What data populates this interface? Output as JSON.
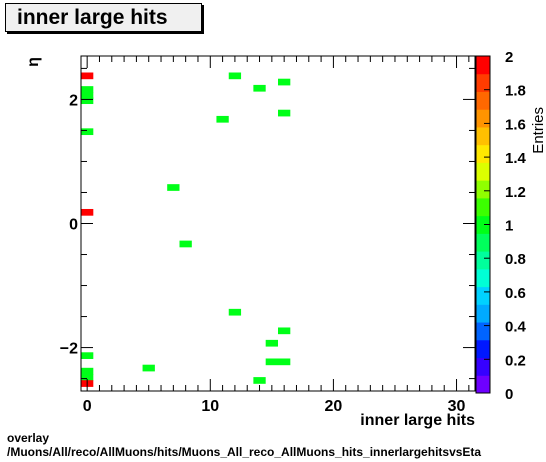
{
  "chart_data": {
    "type": "heatmap",
    "title": "inner large hits",
    "xlabel": "inner large hits",
    "ylabel": "η",
    "zlabel": "Entries",
    "xlim": [
      -0.5,
      31.5
    ],
    "ylim": [
      -2.7,
      2.7
    ],
    "zlim": [
      0,
      2
    ],
    "x_ticks": [
      0,
      10,
      20,
      30
    ],
    "y_ticks": [
      -2,
      0,
      2
    ],
    "z_ticks": [
      0,
      0.2,
      0.4,
      0.6,
      0.8,
      1,
      1.2,
      1.4,
      1.6,
      1.8,
      2
    ],
    "x_bin_width": 1,
    "y_bin_width": 0.108,
    "colormap": [
      "#6e00ff",
      "#3600ff",
      "#0018ff",
      "#0064ff",
      "#00aaff",
      "#00d2ff",
      "#00ffd6",
      "#00ff9c",
      "#00ff5c",
      "#00ff18",
      "#3cff00",
      "#90ff00",
      "#dcff00",
      "#ffe800",
      "#ffc000",
      "#ff9400",
      "#ff6800",
      "#ff3c00",
      "#ff0000"
    ],
    "points": [
      {
        "x": 0,
        "y": 2.38,
        "v": 2
      },
      {
        "x": 0,
        "y": 2.16,
        "v": 1
      },
      {
        "x": 0,
        "y": 2.06,
        "v": 1
      },
      {
        "x": 0,
        "y": 1.98,
        "v": 1
      },
      {
        "x": 0,
        "y": 1.48,
        "v": 1
      },
      {
        "x": 0,
        "y": 0.18,
        "v": 2
      },
      {
        "x": 0,
        "y": -2.13,
        "v": 1
      },
      {
        "x": 0,
        "y": -2.38,
        "v": 1
      },
      {
        "x": 0,
        "y": -2.48,
        "v": 1
      },
      {
        "x": 0,
        "y": -2.58,
        "v": 2
      },
      {
        "x": 5,
        "y": -2.33,
        "v": 1
      },
      {
        "x": 7,
        "y": 0.58,
        "v": 1
      },
      {
        "x": 8,
        "y": -0.33,
        "v": 1
      },
      {
        "x": 11,
        "y": 1.68,
        "v": 1
      },
      {
        "x": 12,
        "y": 2.38,
        "v": 1
      },
      {
        "x": 12,
        "y": -1.43,
        "v": 1
      },
      {
        "x": 14,
        "y": 2.18,
        "v": 1
      },
      {
        "x": 14,
        "y": -2.53,
        "v": 1
      },
      {
        "x": 15,
        "y": -1.93,
        "v": 1
      },
      {
        "x": 15,
        "y": -2.23,
        "v": 1
      },
      {
        "x": 16,
        "y": 2.28,
        "v": 1
      },
      {
        "x": 16,
        "y": 1.78,
        "v": 1
      },
      {
        "x": 16,
        "y": -1.73,
        "v": 1
      },
      {
        "x": 16,
        "y": -2.23,
        "v": 1
      }
    ]
  },
  "footer": {
    "line1": "overlay",
    "line2": "/Muons/All/reco/AllMuons/hits/Muons_All_reco_AllMuons_hits_innerlargehitsvsEta"
  }
}
